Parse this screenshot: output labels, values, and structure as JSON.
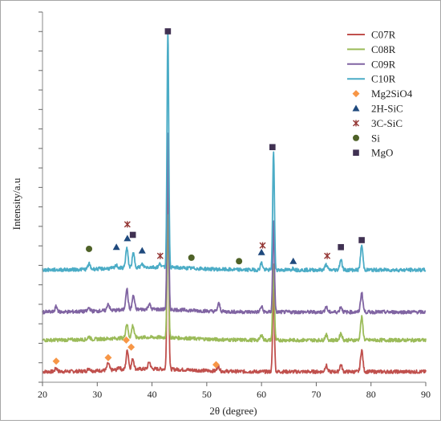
{
  "chart_data": {
    "type": "line",
    "xlabel": "2θ (degree)",
    "ylabel": "Intensity/a.u",
    "xlim": [
      20,
      90
    ],
    "x_ticks": [
      "20",
      "30",
      "40",
      "50",
      "60",
      "70",
      "80",
      "90"
    ],
    "y_tick_labels": "none",
    "grid": false,
    "legend_placement": "top-right",
    "series": [
      {
        "name": "C07R",
        "color": "#c0504d",
        "baseline": 3.0,
        "noise": 1.0,
        "peaks": [
          [
            22.5,
            1.0
          ],
          [
            28.5,
            0.8
          ],
          [
            32.0,
            2.0
          ],
          [
            34.0,
            0.8
          ],
          [
            35.5,
            5.5
          ],
          [
            36.5,
            3.0
          ],
          [
            39.5,
            2.0
          ],
          [
            42.9,
            53.0
          ],
          [
            52.1,
            1.5
          ],
          [
            62.2,
            24.0
          ],
          [
            71.8,
            1.8
          ],
          [
            74.5,
            2.0
          ],
          [
            78.3,
            6.2
          ]
        ]
      },
      {
        "name": "C08R",
        "color": "#9bbb59",
        "baseline": 12.0,
        "noise": 1.0,
        "peaks": [
          [
            28.5,
            0.8
          ],
          [
            35.4,
            4.0
          ],
          [
            36.5,
            3.5
          ],
          [
            42.9,
            35.0
          ],
          [
            60.0,
            1.5
          ],
          [
            62.2,
            22.0
          ],
          [
            71.8,
            1.5
          ],
          [
            74.5,
            2.0
          ],
          [
            78.3,
            6.5
          ]
        ]
      },
      {
        "name": "C09R",
        "color": "#8064a2",
        "baseline": 20.0,
        "noise": 1.0,
        "peaks": [
          [
            22.5,
            1.5
          ],
          [
            28.5,
            1.0
          ],
          [
            32.0,
            2.0
          ],
          [
            35.4,
            6.0
          ],
          [
            36.6,
            4.0
          ],
          [
            39.5,
            1.5
          ],
          [
            42.9,
            50.0
          ],
          [
            52.2,
            2.2
          ],
          [
            60.0,
            1.5
          ],
          [
            62.2,
            26.0
          ],
          [
            71.8,
            1.5
          ],
          [
            74.5,
            1.5
          ],
          [
            78.3,
            5.5
          ]
        ]
      },
      {
        "name": "C10R",
        "color": "#4bacc6",
        "baseline": 32.0,
        "noise": 1.0,
        "peaks": [
          [
            28.5,
            1.5
          ],
          [
            33.5,
            0.8
          ],
          [
            35.4,
            5.5
          ],
          [
            36.6,
            4.0
          ],
          [
            38.2,
            0.8
          ],
          [
            41.5,
            1.0
          ],
          [
            42.9,
            68.0
          ],
          [
            60.0,
            2.0
          ],
          [
            62.2,
            34.0
          ],
          [
            65.8,
            0.5
          ],
          [
            71.8,
            1.5
          ],
          [
            74.5,
            3.0
          ],
          [
            78.3,
            7.0
          ]
        ]
      }
    ],
    "markers": [
      {
        "name": "Mg2SiO4",
        "symbol": "diamond",
        "color": "#f79646",
        "points": [
          [
            22.5,
            6.0
          ],
          [
            32.0,
            7.0
          ],
          [
            35.3,
            12.0
          ],
          [
            36.2,
            10.0
          ],
          [
            51.7,
            5.0
          ]
        ]
      },
      {
        "name": "2H-SiC",
        "symbol": "triangle",
        "color": "#1f497d",
        "points": [
          [
            33.5,
            38.5
          ],
          [
            35.5,
            41.0
          ],
          [
            38.2,
            37.5
          ],
          [
            60.0,
            37.0
          ],
          [
            65.8,
            34.5
          ]
        ]
      },
      {
        "name": "3C-SiC",
        "symbol": "cross",
        "color": "#943634",
        "points": [
          [
            35.5,
            45.0
          ],
          [
            41.5,
            36.0
          ],
          [
            60.2,
            39.0
          ],
          [
            72.0,
            36.0
          ]
        ]
      },
      {
        "name": "Si",
        "symbol": "circle",
        "color": "#4f6228",
        "points": [
          [
            28.5,
            38.0
          ],
          [
            47.2,
            35.5
          ],
          [
            55.9,
            34.5
          ]
        ]
      },
      {
        "name": "MgO",
        "symbol": "square",
        "color": "#403152",
        "points": [
          [
            36.5,
            42.0
          ],
          [
            42.9,
            100.0
          ],
          [
            62.0,
            67.0
          ],
          [
            74.5,
            38.5
          ],
          [
            78.3,
            40.5
          ]
        ]
      }
    ]
  }
}
